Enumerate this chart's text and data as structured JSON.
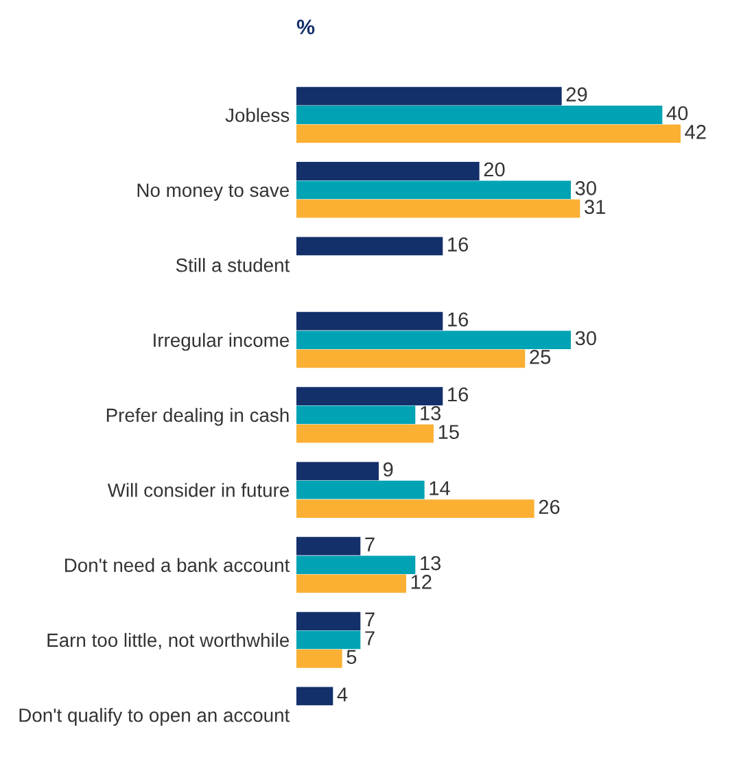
{
  "chart_data": {
    "type": "bar",
    "orientation": "horizontal",
    "title": "%",
    "categories": [
      "Jobless",
      "No money to save",
      "Still a student",
      "Irregular income",
      "Prefer dealing in cash",
      "Will consider in future",
      "Don't need a bank account",
      "Earn too little, not worthwhile",
      "Don't qualify to open an account"
    ],
    "series": [
      {
        "color": "#14306b",
        "values": [
          29,
          20,
          16,
          16,
          16,
          9,
          7,
          7,
          4
        ]
      },
      {
        "color": "#00a3b4",
        "values": [
          40,
          30,
          null,
          30,
          13,
          14,
          13,
          7,
          null
        ]
      },
      {
        "color": "#fbb034",
        "values": [
          42,
          31,
          null,
          25,
          15,
          26,
          12,
          5,
          null
        ]
      }
    ],
    "data_labels": true,
    "tick_labels": "y",
    "legend": false,
    "grid": false
  }
}
